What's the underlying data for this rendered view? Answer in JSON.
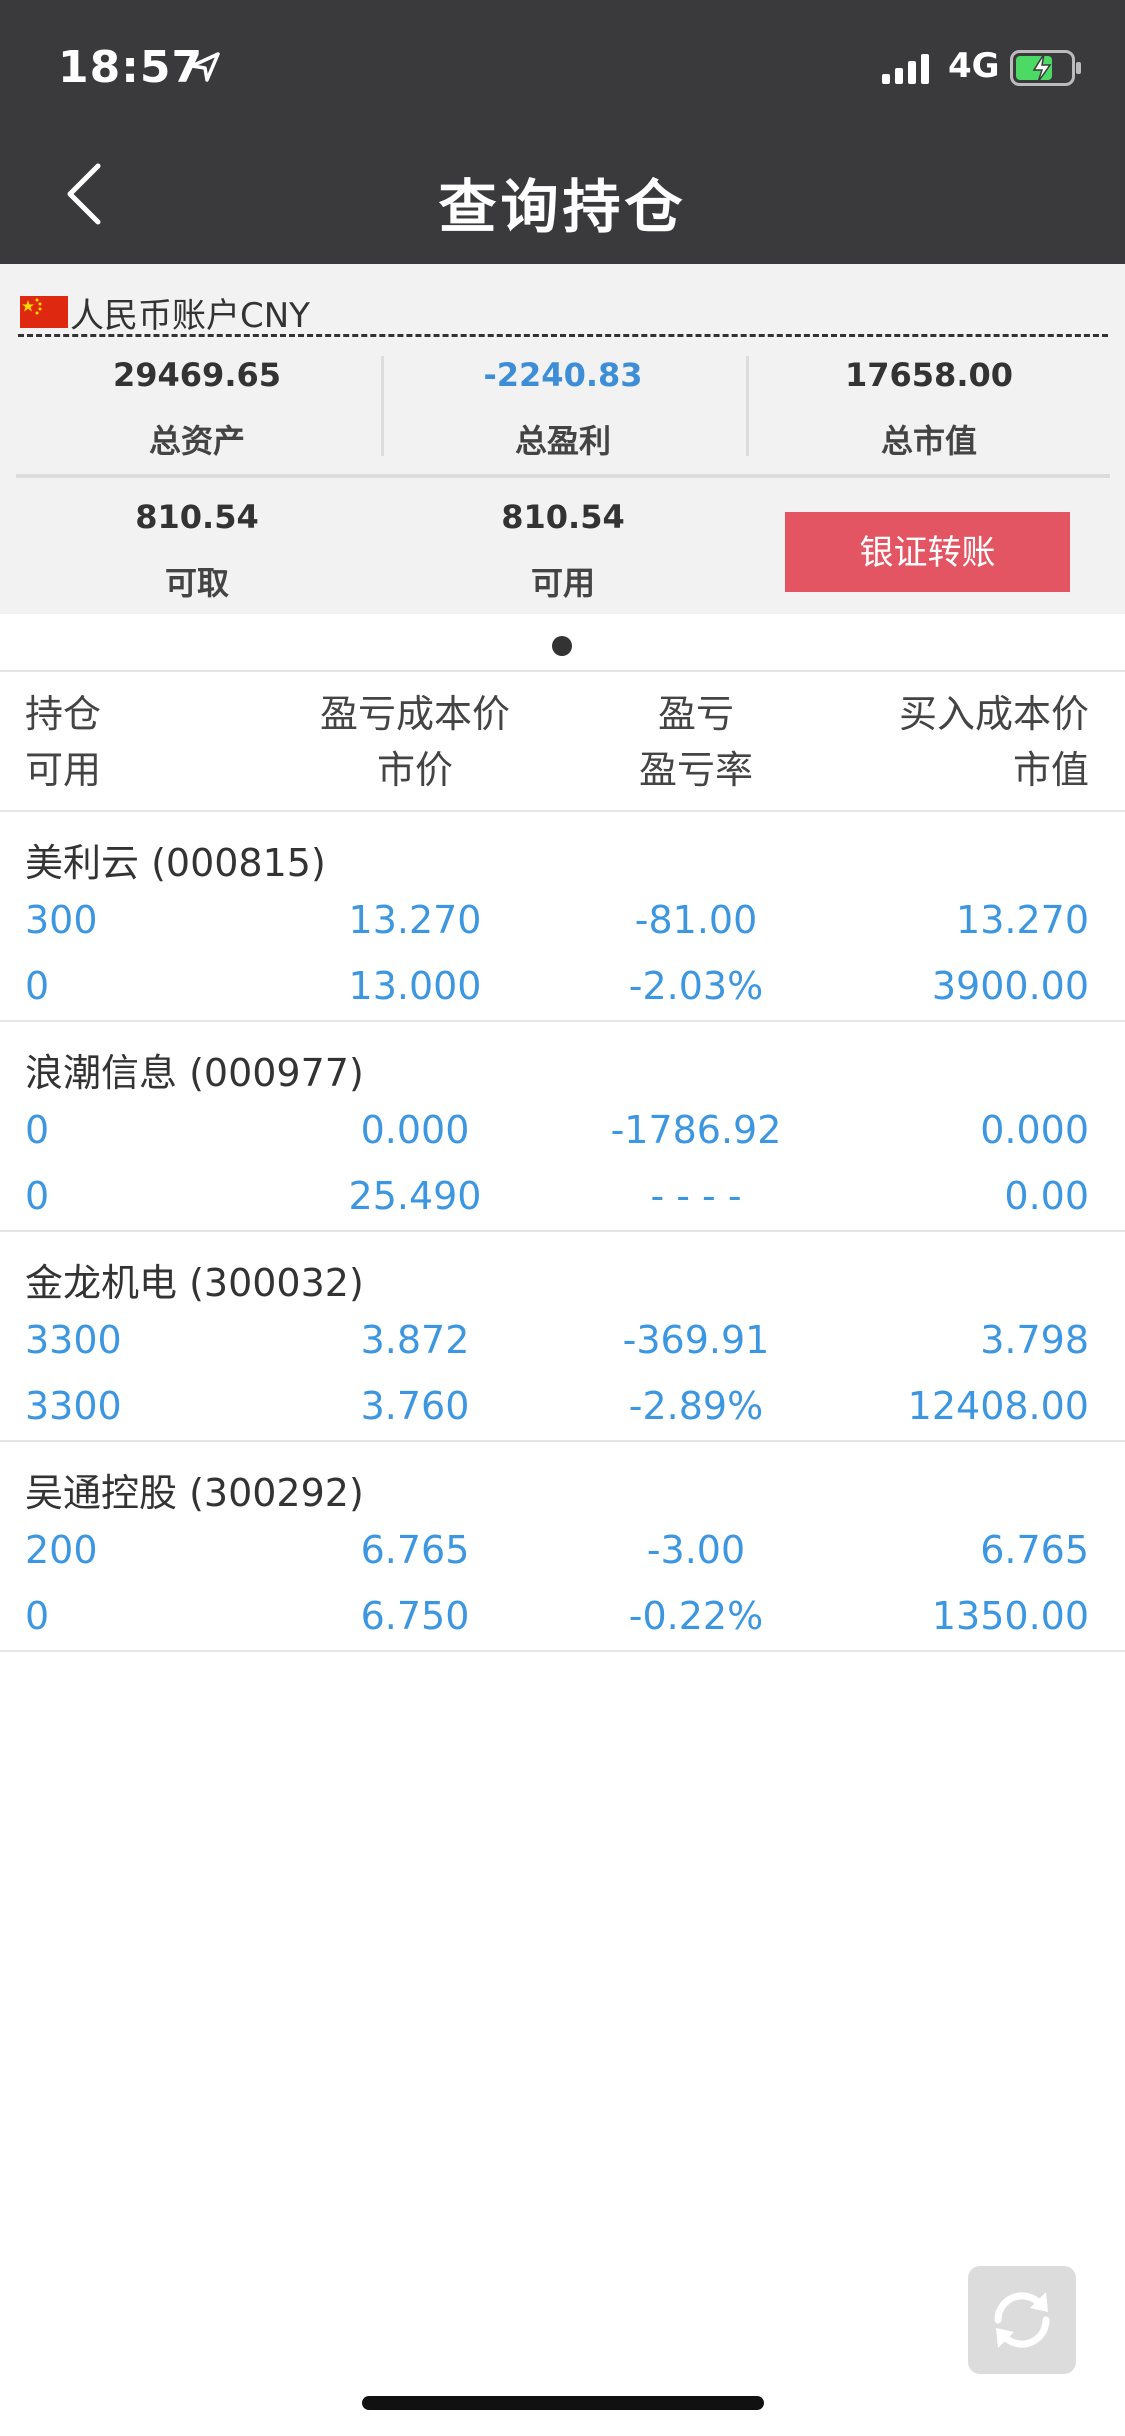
{
  "status_bar": {
    "time": "18:57",
    "network": "4G"
  },
  "header": {
    "title": "查询持仓"
  },
  "account": {
    "name": "人民币账户CNY",
    "total_assets": {
      "value": "29469.65",
      "label": "总资产"
    },
    "total_profit": {
      "value": "-2240.83",
      "label": "总盈利"
    },
    "total_market_value": {
      "value": "17658.00",
      "label": "总市值"
    },
    "withdrawable": {
      "value": "810.54",
      "label": "可取"
    },
    "available": {
      "value": "810.54",
      "label": "可用"
    },
    "transfer_button": "银证转账"
  },
  "table": {
    "headers": {
      "col1": [
        "持仓",
        "可用"
      ],
      "col2": [
        "盈亏成本价",
        "市价"
      ],
      "col3": [
        "盈亏",
        "盈亏率"
      ],
      "col4": [
        "买入成本价",
        "市值"
      ]
    },
    "rows": [
      {
        "name": "美利云 (000815)",
        "holding": "300",
        "available": "0",
        "pl_cost": "13.270",
        "price": "13.000",
        "pl": "-81.00",
        "pl_rate": "-2.03%",
        "buy_cost": "13.270",
        "market_value": "3900.00"
      },
      {
        "name": "浪潮信息 (000977)",
        "holding": "0",
        "available": "0",
        "pl_cost": "0.000",
        "price": "25.490",
        "pl": "-1786.92",
        "pl_rate": "- - - -",
        "buy_cost": "0.000",
        "market_value": "0.00"
      },
      {
        "name": "金龙机电 (300032)",
        "holding": "3300",
        "available": "3300",
        "pl_cost": "3.872",
        "price": "3.760",
        "pl": "-369.91",
        "pl_rate": "-2.89%",
        "buy_cost": "3.798",
        "market_value": "12408.00"
      },
      {
        "name": "吴通控股 (300292)",
        "holding": "200",
        "available": "0",
        "pl_cost": "6.765",
        "price": "6.750",
        "pl": "-3.00",
        "pl_rate": "-0.22%",
        "buy_cost": "6.765",
        "market_value": "1350.00"
      }
    ]
  },
  "colors": {
    "accent_blue": "#3d97e0",
    "button_red": "#e35562",
    "header_dark": "#3a3a3c"
  }
}
